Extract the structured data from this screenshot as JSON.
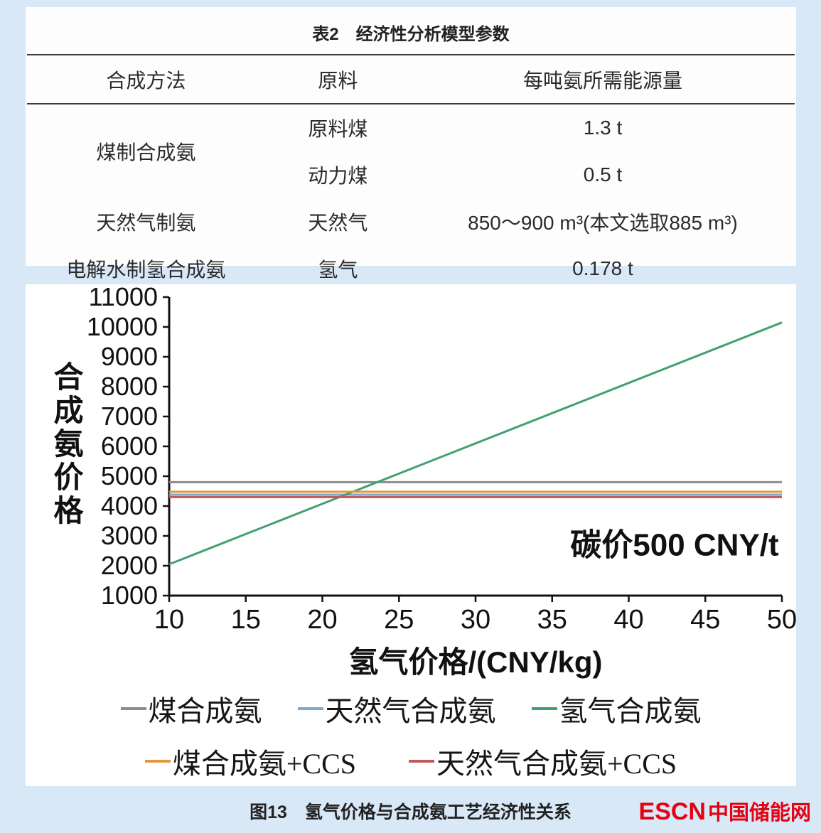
{
  "page": {
    "background": "#d8e8f7"
  },
  "table": {
    "title": "表2　经济性分析模型参数",
    "headers": [
      "合成方法",
      "原料",
      "每吨氨所需能源量"
    ],
    "rows": [
      {
        "method": "煤制合成氨",
        "material": "原料煤",
        "energy": "1.3 t"
      },
      {
        "material": "动力煤",
        "energy": "0.5 t"
      },
      {
        "method": "天然气制氨",
        "material": "天然气",
        "energy": "850～900 m³(本文选取885 m³)"
      },
      {
        "method": "电解水制氢合成氨",
        "material": "氢气",
        "energy": "0.178 t"
      }
    ]
  },
  "chart_data": {
    "type": "line",
    "title": "",
    "xlabel": "氢气价格/(CNY/kg)",
    "ylabel": "合成氨价格",
    "xlim": [
      10,
      50
    ],
    "ylim": [
      1000,
      11000
    ],
    "xticks": [
      10,
      15,
      20,
      25,
      30,
      35,
      40,
      45,
      50
    ],
    "yticks": [
      1000,
      2000,
      3000,
      4000,
      5000,
      6000,
      7000,
      8000,
      9000,
      10000,
      11000
    ],
    "grid": false,
    "annotation": {
      "text": "碳价500 CNY/t",
      "x": 49.8,
      "y": 2350
    },
    "series": [
      {
        "name": "煤合成氨",
        "color": "#8c8c8c",
        "x": [
          10,
          50
        ],
        "y": [
          4800,
          4800
        ]
      },
      {
        "name": "天然气合成氨",
        "color": "#7fa8cf",
        "x": [
          10,
          50
        ],
        "y": [
          4380,
          4380
        ]
      },
      {
        "name": "氢气合成氨",
        "color": "#41a070",
        "x": [
          10,
          50
        ],
        "y": [
          2050,
          10150
        ]
      },
      {
        "name": "煤合成氨+CCS",
        "color": "#e09a3a",
        "x": [
          10,
          50
        ],
        "y": [
          4480,
          4480
        ]
      },
      {
        "name": "天然气合成氨+CCS",
        "color": "#c05a5e",
        "x": [
          10,
          50
        ],
        "y": [
          4300,
          4300
        ]
      }
    ],
    "legend_rows": [
      [
        0,
        1,
        2
      ],
      [
        3,
        4
      ]
    ],
    "legend_position": "below"
  },
  "caption": "图13　氢气价格与合成氨工艺经济性关系",
  "logo": {
    "brand": "ESCN",
    "name": "中国储能网",
    "color": "#e60012"
  }
}
